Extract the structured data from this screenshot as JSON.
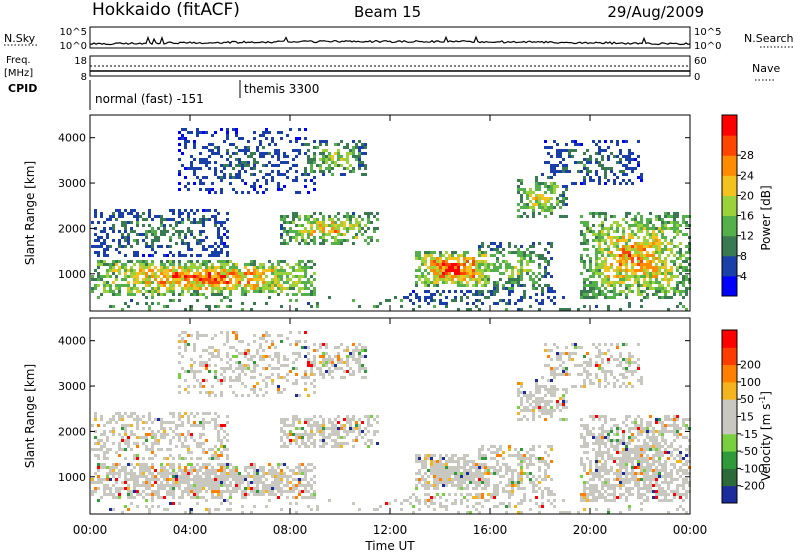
{
  "header": {
    "title": "Hokkaido (fitACF)",
    "beam": "Beam 15",
    "date": "29/Aug/2009"
  },
  "status_panels": {
    "nsky": {
      "label": "N.Sky",
      "ticks": [
        "10^5",
        "10^0"
      ],
      "right_label": "N.Search"
    },
    "freq": {
      "label_line1": "Freq.",
      "label_line2": "[MHz]",
      "ticks": [
        "18",
        "8"
      ],
      "right_ticks": [
        "60",
        "0"
      ],
      "right_label": "Nave"
    },
    "cpid": {
      "label": "CPID",
      "segments": [
        "normal (fast) -151",
        "themis 3300"
      ]
    }
  },
  "chart_data": [
    {
      "type": "heatmap",
      "name": "power",
      "ylabel": "Slant Range [km]",
      "ylim": [
        180,
        4500
      ],
      "yticks": [
        1000,
        2000,
        3000,
        4000
      ],
      "xlim": [
        0,
        24
      ],
      "colorbar": {
        "label": "Power [dB]",
        "ticks": [
          "4",
          "8",
          "12",
          "16",
          "20",
          "24",
          "28"
        ],
        "colors": [
          "#0000ff",
          "#1a3fa8",
          "#3a7a52",
          "#53b04a",
          "#9bd23c",
          "#f4c21e",
          "#ff8c00",
          "#ff4500",
          "#ff0000"
        ]
      }
    },
    {
      "type": "heatmap",
      "name": "velocity",
      "ylabel": "Slant Range [km]",
      "ylim": [
        180,
        4500
      ],
      "yticks": [
        1000,
        2000,
        3000,
        4000
      ],
      "xlim": [
        0,
        24
      ],
      "xticks": [
        "00:00",
        "04:00",
        "08:00",
        "12:00",
        "16:00",
        "20:00",
        "00:00"
      ],
      "xlabel": "Time UT",
      "colorbar": {
        "label": "Velocity [m s",
        "label_sup": "-1",
        "label_end": "]",
        "ticks": [
          "200",
          "100",
          "50",
          "15",
          "-15",
          "-50",
          "-100",
          "-200"
        ],
        "colors": [
          "#1c2c9c",
          "#2d6a3a",
          "#2f9a3a",
          "#78d040",
          "#c8c8c0",
          "#c8c8c0",
          "#f4b41e",
          "#ff8000",
          "#ff3c00",
          "#ff0000"
        ]
      }
    }
  ],
  "scatter_regions": [
    {
      "t0": 0.0,
      "t1": 9.0,
      "r0": 500,
      "r1": 1250,
      "core": 0.85
    },
    {
      "t0": 0.0,
      "t1": 5.5,
      "r0": 1350,
      "r1": 2400,
      "core": 0.35
    },
    {
      "t0": 3.5,
      "t1": 9.0,
      "r0": 2700,
      "r1": 4200,
      "core": 0.25
    },
    {
      "t0": 7.5,
      "t1": 11.5,
      "r0": 1600,
      "r1": 2300,
      "core": 0.7
    },
    {
      "t0": 8.5,
      "t1": 11.0,
      "r0": 3100,
      "r1": 3900,
      "core": 0.55
    },
    {
      "t0": 13.0,
      "t1": 16.0,
      "r0": 700,
      "r1": 1450,
      "core": 0.95
    },
    {
      "t0": 15.5,
      "t1": 18.5,
      "r0": 500,
      "r1": 1700,
      "core": 0.5
    },
    {
      "t0": 17.0,
      "t1": 19.0,
      "r0": 2200,
      "r1": 3100,
      "core": 0.6
    },
    {
      "t0": 19.5,
      "t1": 24.0,
      "r0": 400,
      "r1": 2300,
      "core": 0.75
    },
    {
      "t0": 18.0,
      "t1": 22.0,
      "r0": 2900,
      "r1": 3900,
      "core": 0.3
    },
    {
      "t0": 12.5,
      "t1": 19.0,
      "r0": 250,
      "r1": 600,
      "core": 0.3
    }
  ]
}
